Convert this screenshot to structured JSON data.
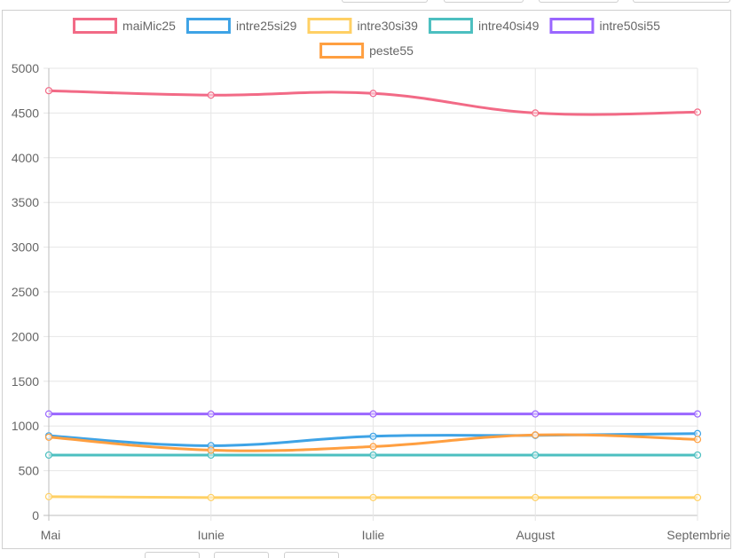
{
  "colors": {
    "maiMic25": "#f26a86",
    "intre25si29": "#3ea3e6",
    "intre30si39": "#ffd064",
    "intre40si49": "#4cbfc0",
    "intre50si55": "#9a66ff",
    "peste55": "#ff9f40",
    "grid": "#e6e6e6",
    "axis": "#bdbdbd",
    "text": "#666666"
  },
  "chart_data": {
    "type": "line",
    "title": "",
    "xlabel": "",
    "ylabel": "",
    "categories": [
      "Mai",
      "Iunie",
      "Iulie",
      "August",
      "Septembrie"
    ],
    "ylim": [
      0,
      5000
    ],
    "yticks": [
      0,
      500,
      1000,
      1500,
      2000,
      2500,
      3000,
      3500,
      4000,
      4500,
      5000
    ],
    "grid": true,
    "legend_position": "top",
    "series": [
      {
        "name": "maiMic25",
        "color_key": "maiMic25",
        "values": [
          4750,
          4700,
          4720,
          4500,
          4510
        ]
      },
      {
        "name": "intre25si29",
        "color_key": "intre25si29",
        "values": [
          890,
          780,
          885,
          895,
          915
        ]
      },
      {
        "name": "intre30si39",
        "color_key": "intre30si39",
        "values": [
          210,
          200,
          200,
          200,
          200
        ]
      },
      {
        "name": "intre40si49",
        "color_key": "intre40si49",
        "values": [
          675,
          675,
          675,
          675,
          675
        ]
      },
      {
        "name": "intre50si55",
        "color_key": "intre50si55",
        "values": [
          1135,
          1135,
          1135,
          1135,
          1135
        ]
      },
      {
        "name": "peste55",
        "color_key": "peste55",
        "values": [
          875,
          730,
          770,
          900,
          850
        ]
      }
    ]
  }
}
